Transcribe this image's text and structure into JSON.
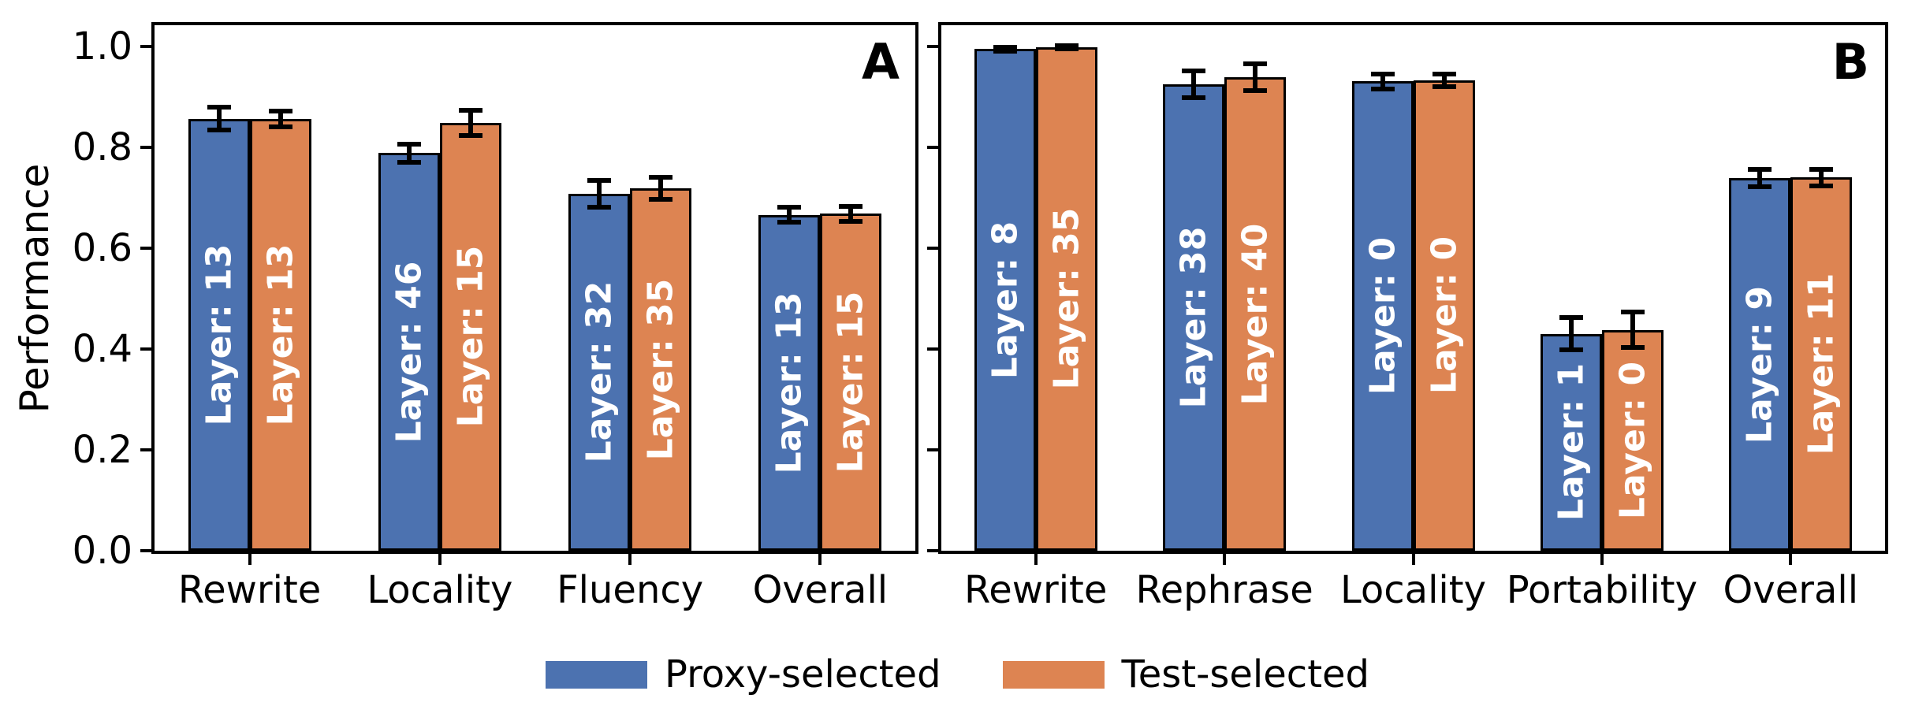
{
  "figure": {
    "ylabel": "Performance",
    "ytick_labels": [
      "0.0",
      "0.2",
      "0.4",
      "0.6",
      "0.8",
      "1.0"
    ],
    "background_color": "#ffffff",
    "colors": {
      "proxy_blue": "#4C72B0",
      "test_orange": "#DD8452",
      "bar_edge": "#000000",
      "bar_label_text": "#ffffff"
    },
    "legend": {
      "position": "below-center",
      "items": [
        {
          "label": "Proxy-selected",
          "color": "#4C72B0"
        },
        {
          "label": "Test-selected",
          "color": "#DD8452"
        }
      ]
    }
  },
  "chart_data": [
    {
      "type": "bar",
      "panel_label": "A",
      "title": "",
      "xlabel": "",
      "ylabel": "Performance",
      "ylim": [
        0.0,
        1.055
      ],
      "yticks": [
        0.0,
        0.2,
        0.4,
        0.6,
        0.8,
        1.0
      ],
      "grid": false,
      "error_bars": true,
      "categories": [
        "Rewrite",
        "Locality",
        "Fluency",
        "Overall"
      ],
      "series": [
        {
          "name": "Proxy-selected",
          "color": "#4C72B0",
          "values": [
            0.857,
            0.789,
            0.708,
            0.666
          ],
          "errors": [
            0.022,
            0.018,
            0.026,
            0.015
          ],
          "bar_labels": [
            "Layer: 13",
            "Layer: 46",
            "Layer: 32",
            "Layer: 13"
          ]
        },
        {
          "name": "Test-selected",
          "color": "#DD8452",
          "values": [
            0.856,
            0.849,
            0.719,
            0.668
          ],
          "errors": [
            0.016,
            0.025,
            0.022,
            0.015
          ],
          "bar_labels": [
            "Layer: 13",
            "Layer: 15",
            "Layer: 35",
            "Layer: 15"
          ]
        }
      ]
    },
    {
      "type": "bar",
      "panel_label": "B",
      "title": "",
      "xlabel": "",
      "ylabel": "",
      "ylim": [
        0.0,
        1.055
      ],
      "yticks": [
        0.0,
        0.2,
        0.4,
        0.6,
        0.8,
        1.0
      ],
      "grid": false,
      "error_bars": true,
      "categories": [
        "Rewrite",
        "Rephrase",
        "Locality",
        "Portability",
        "Overall"
      ],
      "series": [
        {
          "name": "Proxy-selected",
          "color": "#4C72B0",
          "values": [
            0.995,
            0.925,
            0.931,
            0.43,
            0.739
          ],
          "errors": [
            0.004,
            0.027,
            0.015,
            0.032,
            0.017
          ],
          "bar_labels": [
            "Layer: 8",
            "Layer: 38",
            "Layer: 0",
            "Layer: 1",
            "Layer: 9"
          ]
        },
        {
          "name": "Test-selected",
          "color": "#DD8452",
          "values": [
            0.999,
            0.939,
            0.933,
            0.438,
            0.74
          ],
          "errors": [
            0.003,
            0.027,
            0.013,
            0.035,
            0.016
          ],
          "bar_labels": [
            "Layer: 35",
            "Layer: 40",
            "Layer: 0",
            "Layer: 0",
            "Layer: 11"
          ]
        }
      ]
    }
  ]
}
